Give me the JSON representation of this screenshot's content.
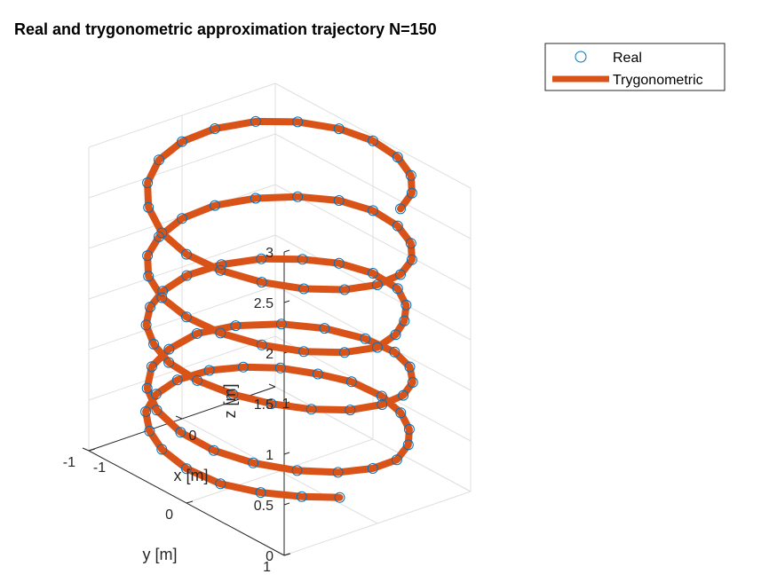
{
  "chart_data": {
    "type": "line3d",
    "title": "Real and trygonometric approximation trajectory N=150",
    "xlabel": "x [m]",
    "ylabel": "y [m]",
    "zlabel": "z [m]",
    "xlim": [
      -1,
      1
    ],
    "ylim": [
      -1,
      1
    ],
    "zlim": [
      0,
      3
    ],
    "xticks": [
      "-1",
      "0",
      "1"
    ],
    "yticks": [
      "-1",
      "0",
      "1"
    ],
    "zticks": [
      "0",
      "0.5",
      "1",
      "1.5",
      "2",
      "2.5",
      "3"
    ],
    "grid": true,
    "legend": {
      "position": "top-right",
      "entries": [
        "Real",
        "Trygonometric"
      ]
    },
    "colors": {
      "real": "#0072BD",
      "trygonometric": "#D95319"
    },
    "series": [
      {
        "name": "Real",
        "style": "markers-circle",
        "description_of_path": "helix of radius ~1 m, 5 turns, rising from z=0 to z=3",
        "points": [
          [
            -0.3,
            0.9,
            0.3
          ],
          [
            -0.55,
            0.75,
            0.31
          ],
          [
            -0.78,
            0.55,
            0.32
          ],
          [
            -0.95,
            0.3,
            0.33
          ],
          [
            -1.0,
            0.0,
            0.34
          ],
          [
            -0.95,
            -0.3,
            0.36
          ],
          [
            -0.82,
            -0.55,
            0.37
          ],
          [
            -0.62,
            -0.78,
            0.38
          ],
          [
            -0.35,
            -0.93,
            0.39
          ],
          [
            -0.05,
            -1.0,
            0.4
          ],
          [
            0.25,
            -0.96,
            0.42
          ],
          [
            0.5,
            -0.85,
            0.43
          ],
          [
            0.72,
            -0.68,
            0.44
          ],
          [
            0.88,
            -0.45,
            0.45
          ],
          [
            0.98,
            -0.2,
            0.47
          ],
          [
            0.99,
            0.1,
            0.48
          ],
          [
            0.9,
            0.38,
            0.49
          ],
          [
            0.74,
            0.62,
            0.5
          ],
          [
            0.52,
            0.82,
            0.52
          ],
          [
            0.25,
            0.96,
            0.53
          ],
          [
            -0.05,
            1.0,
            0.56
          ],
          [
            -0.35,
            0.93,
            0.58
          ],
          [
            -0.62,
            0.77,
            0.6
          ],
          [
            -0.84,
            0.53,
            0.62
          ],
          [
            -0.97,
            0.25,
            0.64
          ],
          [
            -0.99,
            -0.07,
            0.66
          ],
          [
            -0.9,
            -0.4,
            0.68
          ],
          [
            -0.72,
            -0.67,
            0.7
          ],
          [
            -0.45,
            -0.88,
            0.72
          ],
          [
            -0.15,
            -0.99,
            0.74
          ],
          [
            0.15,
            -0.99,
            0.8
          ],
          [
            0.45,
            -0.88,
            0.84
          ],
          [
            0.72,
            -0.67,
            0.88
          ],
          [
            0.9,
            -0.4,
            0.92
          ],
          [
            0.99,
            -0.07,
            0.96
          ],
          [
            0.97,
            0.25,
            1.0
          ],
          [
            0.84,
            0.53,
            1.04
          ],
          [
            0.62,
            0.77,
            1.08
          ],
          [
            0.35,
            0.93,
            1.12
          ],
          [
            0.05,
            1.0,
            1.16
          ],
          [
            -0.25,
            0.96,
            1.18
          ],
          [
            -0.52,
            0.82,
            1.2
          ],
          [
            -0.74,
            0.62,
            1.22
          ],
          [
            -0.9,
            0.38,
            1.24
          ],
          [
            -0.99,
            0.1,
            1.26
          ],
          [
            -0.98,
            -0.2,
            1.28
          ],
          [
            -0.88,
            -0.45,
            1.3
          ],
          [
            -0.72,
            -0.68,
            1.32
          ],
          [
            -0.5,
            -0.85,
            1.34
          ],
          [
            -0.25,
            -0.96,
            1.36
          ],
          [
            0.05,
            -1.0,
            1.4
          ],
          [
            0.35,
            -0.93,
            1.45
          ],
          [
            0.62,
            -0.78,
            1.5
          ],
          [
            0.82,
            -0.55,
            1.55
          ],
          [
            0.95,
            -0.3,
            1.6
          ],
          [
            1.0,
            0.0,
            1.64
          ],
          [
            0.95,
            0.3,
            1.66
          ],
          [
            0.78,
            0.55,
            1.68
          ],
          [
            0.55,
            0.75,
            1.7
          ],
          [
            0.3,
            0.9,
            1.72
          ],
          [
            0.0,
            1.0,
            1.74
          ],
          [
            -0.3,
            0.95,
            1.76
          ],
          [
            -0.58,
            0.8,
            1.78
          ],
          [
            -0.8,
            0.58,
            1.8
          ],
          [
            -0.95,
            0.3,
            1.82
          ],
          [
            -1.0,
            0.0,
            1.84
          ],
          [
            -0.95,
            -0.3,
            1.86
          ],
          [
            -0.8,
            -0.58,
            1.88
          ],
          [
            -0.58,
            -0.8,
            1.9
          ],
          [
            -0.3,
            -0.95,
            1.92
          ],
          [
            0.0,
            -1.0,
            1.98
          ],
          [
            0.3,
            -0.95,
            2.04
          ],
          [
            0.58,
            -0.8,
            2.1
          ],
          [
            0.8,
            -0.58,
            2.16
          ],
          [
            0.95,
            -0.3,
            2.22
          ],
          [
            1.0,
            0.0,
            2.26
          ],
          [
            0.95,
            0.3,
            2.28
          ],
          [
            0.8,
            0.58,
            2.3
          ],
          [
            0.58,
            0.8,
            2.32
          ],
          [
            0.3,
            0.95,
            2.34
          ],
          [
            0.0,
            1.0,
            2.36
          ],
          [
            -0.3,
            0.95,
            2.38
          ],
          [
            -0.58,
            0.8,
            2.4
          ],
          [
            -0.8,
            0.58,
            2.42
          ],
          [
            -0.95,
            0.3,
            2.44
          ],
          [
            -1.0,
            0.0,
            2.46
          ],
          [
            -0.95,
            -0.3,
            2.5
          ],
          [
            -0.8,
            -0.58,
            2.56
          ],
          [
            -0.58,
            -0.8,
            2.62
          ],
          [
            -0.3,
            -0.95,
            2.68
          ],
          [
            0.0,
            -1.0,
            2.74
          ],
          [
            0.3,
            -0.95,
            2.8
          ],
          [
            0.58,
            -0.8,
            2.86
          ],
          [
            0.8,
            -0.58,
            2.9
          ],
          [
            0.95,
            -0.3,
            2.93
          ],
          [
            1.0,
            0.0,
            2.95
          ],
          [
            0.95,
            0.3,
            2.96
          ],
          [
            0.8,
            0.58,
            2.97
          ],
          [
            0.58,
            0.8,
            2.98
          ],
          [
            0.3,
            0.95,
            2.99
          ]
        ]
      },
      {
        "name": "Trygonometric",
        "style": "thick-line",
        "same_points_as": "Real"
      }
    ]
  }
}
